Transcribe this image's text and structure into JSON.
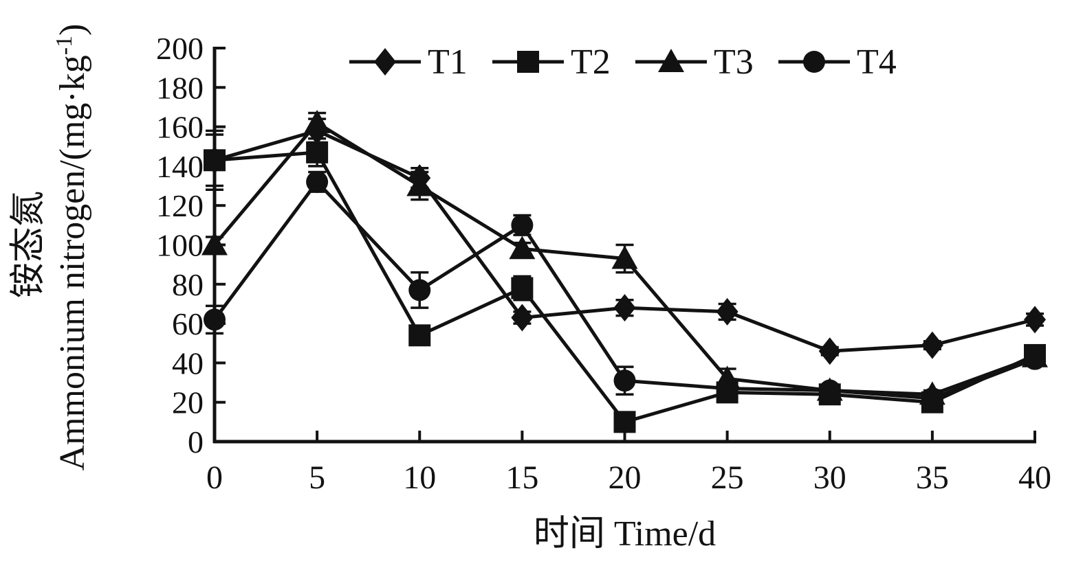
{
  "figure": {
    "background": "#ffffff",
    "ink": "#121212"
  },
  "chart_data": {
    "type": "line",
    "title": "",
    "x": [
      0,
      5,
      10,
      15,
      20,
      25,
      30,
      35,
      40
    ],
    "xlim": [
      0,
      40
    ],
    "ylim": [
      0,
      200
    ],
    "xticks": [
      0,
      5,
      10,
      15,
      20,
      25,
      30,
      35,
      40
    ],
    "yticks": [
      0,
      20,
      40,
      60,
      80,
      100,
      120,
      140,
      160,
      180,
      200
    ],
    "xlabel": "时间 Time/d",
    "ylabel_zh": "铵态氮",
    "ylabel_en_base": "Ammonium nitrogen/(mg·kg",
    "ylabel_en_sup": "-1",
    "ylabel_en_close": ")",
    "grid": false,
    "legend_position": "top-center",
    "series": [
      {
        "name": "T1",
        "marker": "diamond",
        "values": [
          143,
          158,
          134,
          63,
          68,
          66,
          46,
          49,
          62
        ],
        "errors": [
          13,
          6,
          5,
          3,
          4,
          4,
          2,
          2,
          3
        ]
      },
      {
        "name": "T2",
        "marker": "square",
        "values": [
          143,
          147,
          54,
          78,
          10,
          25,
          24,
          20,
          44
        ],
        "errors": [
          15,
          7,
          4,
          6,
          2,
          3,
          2,
          2,
          4
        ]
      },
      {
        "name": "T3",
        "marker": "triangle",
        "values": [
          100,
          162,
          130,
          98,
          93,
          32,
          26,
          24,
          43
        ],
        "errors": [
          4,
          5,
          7,
          3,
          7,
          5,
          2,
          2,
          3
        ]
      },
      {
        "name": "T4",
        "marker": "circle",
        "values": [
          62,
          132,
          77,
          110,
          31,
          27,
          26,
          22,
          42
        ],
        "errors": [
          7,
          5,
          9,
          5,
          7,
          3,
          2,
          2,
          3
        ]
      }
    ]
  }
}
